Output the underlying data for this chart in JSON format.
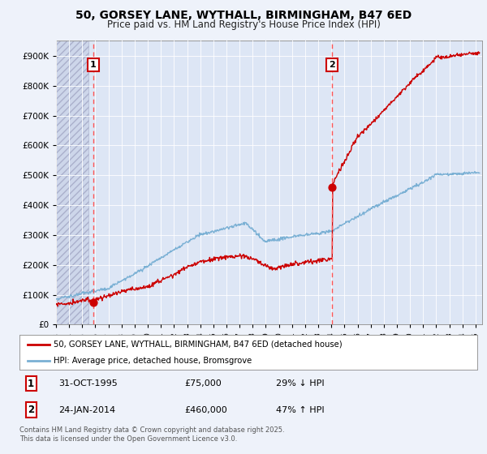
{
  "title_line1": "50, GORSEY LANE, WYTHALL, BIRMINGHAM, B47 6ED",
  "title_line2": "Price paid vs. HM Land Registry's House Price Index (HPI)",
  "background_color": "#eef2fa",
  "plot_bg_color": "#dde6f5",
  "line_color_red": "#cc0000",
  "line_color_blue": "#7ab0d4",
  "sale1_x": 1995.83,
  "sale1_y": 75000,
  "sale2_x": 2014.07,
  "sale2_y": 460000,
  "xmin": 1993,
  "xmax": 2025.5,
  "ymin": 0,
  "ymax": 950000,
  "yticks": [
    0,
    100000,
    200000,
    300000,
    400000,
    500000,
    600000,
    700000,
    800000,
    900000
  ],
  "ytick_labels": [
    "£0",
    "£100K",
    "£200K",
    "£300K",
    "£400K",
    "£500K",
    "£600K",
    "£700K",
    "£800K",
    "£900K"
  ],
  "legend_line1": "50, GORSEY LANE, WYTHALL, BIRMINGHAM, B47 6ED (detached house)",
  "legend_line2": "HPI: Average price, detached house, Bromsgrove",
  "annotation1_date": "31-OCT-1995",
  "annotation1_price": "£75,000",
  "annotation1_hpi": "29% ↓ HPI",
  "annotation2_date": "24-JAN-2014",
  "annotation2_price": "£460,000",
  "annotation2_hpi": "47% ↑ HPI",
  "footer": "Contains HM Land Registry data © Crown copyright and database right 2025.\nThis data is licensed under the Open Government Licence v3.0."
}
